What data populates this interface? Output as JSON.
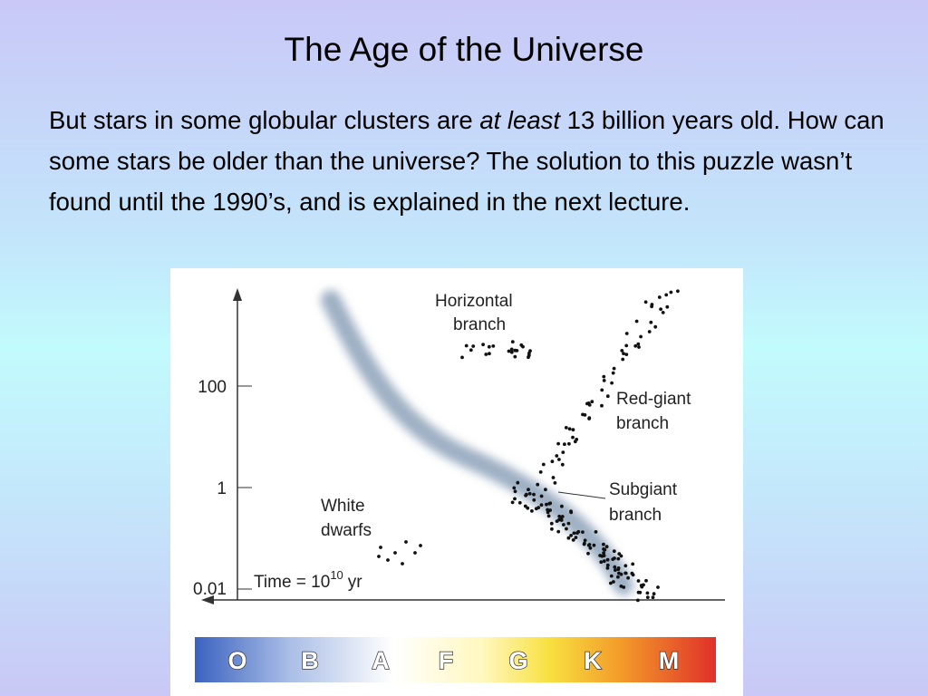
{
  "title": "The Age of the Universe",
  "body": {
    "parts": [
      "But stars in some globular clusters are ",
      "at least",
      " 13 billion years old.  How can some stars be older than the universe? The solution to this puzzle wasn’t found until the 1990’s,  and is explained in the next lecture."
    ]
  },
  "figure": {
    "y_ticks": [
      "100",
      "1",
      "0.01"
    ],
    "time_label": {
      "base": "Time = 10",
      "exponent": "10",
      "unit": "yr"
    },
    "labels": {
      "horizontal_branch": [
        "Horizontal",
        "branch"
      ],
      "red_giant_branch": [
        "Red-giant",
        "branch"
      ],
      "subgiant_branch": [
        "Subgiant",
        "branch"
      ],
      "white_dwarfs": [
        "White",
        "dwarfs"
      ]
    },
    "spectral_classes": [
      "O",
      "B",
      "A",
      "F",
      "G",
      "K",
      "M"
    ]
  }
}
